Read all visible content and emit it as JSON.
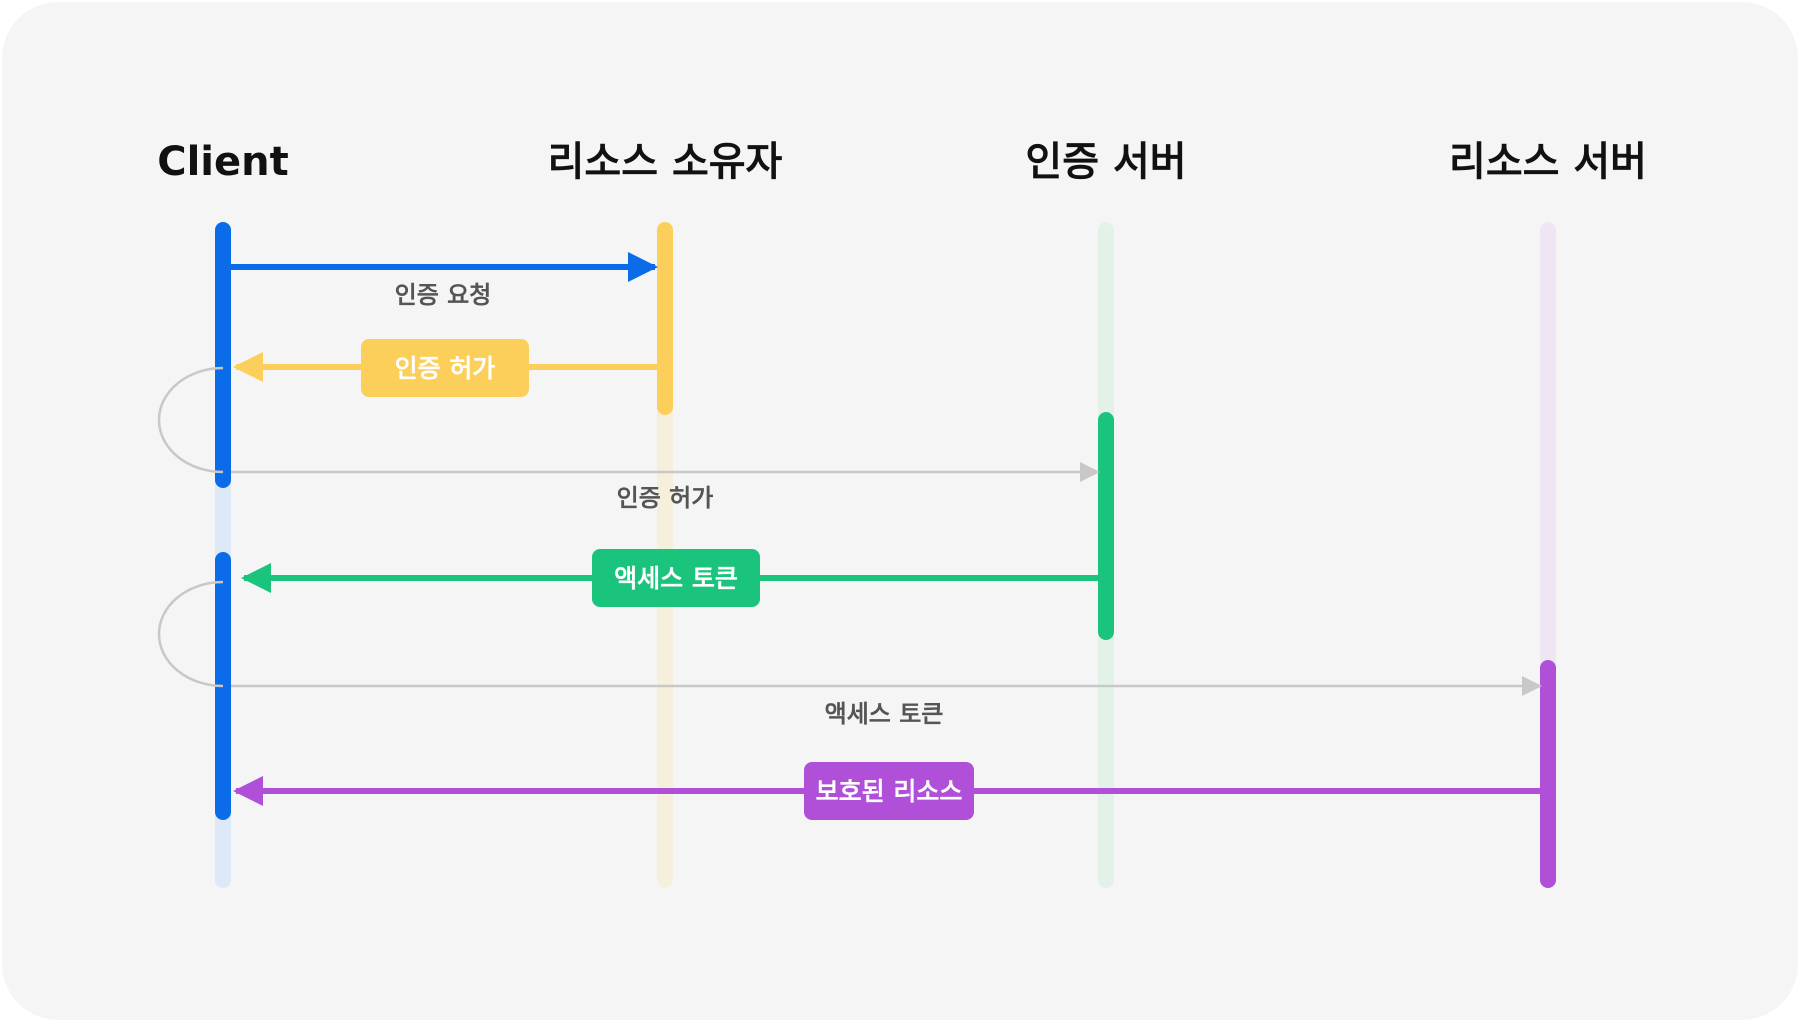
{
  "participants": [
    {
      "id": "client",
      "label": "Client",
      "color": "#0a6ce8"
    },
    {
      "id": "resource-owner",
      "label": "리소스 소유자",
      "color": "#fbcf5a"
    },
    {
      "id": "auth-server",
      "label": "인증 서버",
      "color": "#1bc47d"
    },
    {
      "id": "resource-server",
      "label": "리소스 서버",
      "color": "#b04fd8"
    }
  ],
  "messages": [
    {
      "id": "auth-request",
      "label": "인증 요청",
      "from": "client",
      "to": "resource-owner",
      "style": "plain"
    },
    {
      "id": "auth-grant",
      "label": "인증 허가",
      "from": "resource-owner",
      "to": "client",
      "style": "badge"
    },
    {
      "id": "auth-grant-forward",
      "label": "인증 허가",
      "from": "client",
      "to": "auth-server",
      "style": "plain"
    },
    {
      "id": "access-token",
      "label": "액세스 토큰",
      "from": "auth-server",
      "to": "client",
      "style": "badge"
    },
    {
      "id": "access-token-forward",
      "label": "액세스 토큰",
      "from": "client",
      "to": "resource-server",
      "style": "plain"
    },
    {
      "id": "protected-resource",
      "label": "보호된 리소스",
      "from": "resource-server",
      "to": "client",
      "style": "badge"
    }
  ]
}
